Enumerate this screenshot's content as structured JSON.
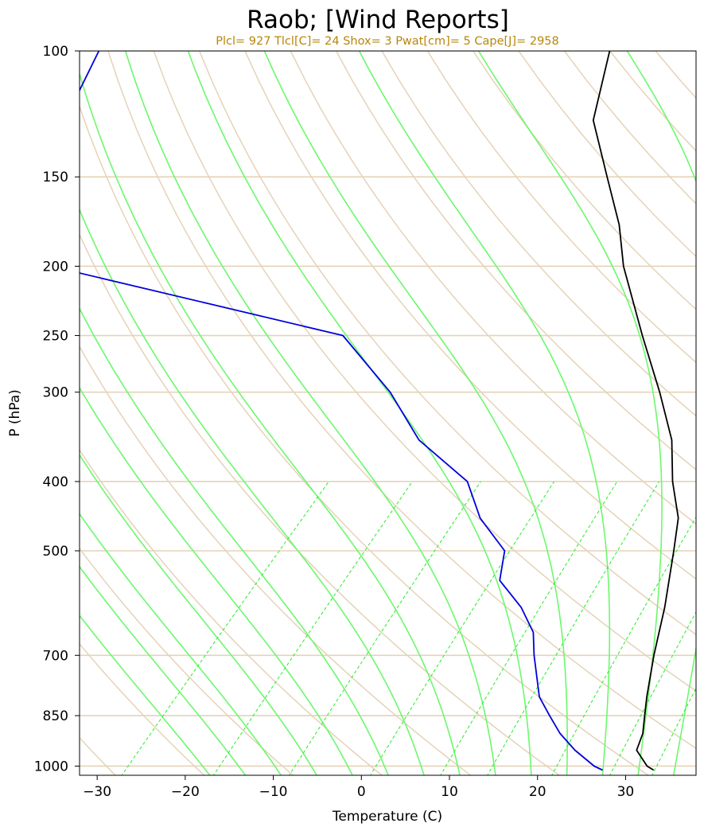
{
  "chart_data": {
    "type": "line",
    "title": "Raob; [Wind Reports]",
    "subtitle": "Plcl= 927 Tlcl[C]= 24 Shox= 3 Pwat[cm]= 5 Cape[J]= 2958",
    "xlabel": "Temperature (C)",
    "ylabel": "P (hPa)",
    "xlim": [
      -32,
      38
    ],
    "ylim": [
      1030,
      100
    ],
    "y_scale": "log",
    "x_ticks": [
      -30,
      -20,
      -10,
      0,
      10,
      20,
      30
    ],
    "x_tick_labels": [
      "−30",
      "−20",
      "−10",
      "0",
      "10",
      "20",
      "30"
    ],
    "y_ticks": [
      100,
      150,
      200,
      250,
      300,
      400,
      500,
      700,
      850,
      1000
    ],
    "y_tick_labels": [
      "100",
      "150",
      "200",
      "250",
      "300",
      "400",
      "500",
      "700",
      "850",
      "1000"
    ],
    "grid": true,
    "series": [
      {
        "color": "#000000",
        "points": [
          {
            "p": 1013,
            "t": 32.6
          },
          {
            "p": 1000,
            "t": 31.4
          },
          {
            "p": 950,
            "t": 28.4
          },
          {
            "p": 900,
            "t": 27.2
          },
          {
            "p": 850,
            "t": 25.4
          },
          {
            "p": 800,
            "t": 23.5
          },
          {
            "p": 700,
            "t": 19.6
          },
          {
            "p": 600,
            "t": 15.4
          },
          {
            "p": 500,
            "t": 10.0
          },
          {
            "p": 450,
            "t": 6.8
          },
          {
            "p": 400,
            "t": 2.0
          },
          {
            "p": 350,
            "t": -2.8
          },
          {
            "p": 300,
            "t": -9.6
          },
          {
            "p": 250,
            "t": -18.0
          },
          {
            "p": 200,
            "t": -28.0
          },
          {
            "p": 175,
            "t": -33.2
          },
          {
            "p": 150,
            "t": -40.0
          },
          {
            "p": 125,
            "t": -48.0
          },
          {
            "p": 100,
            "t": -54.0
          }
        ]
      },
      {
        "color": "#0000dd",
        "points": [
          {
            "p": 1013,
            "t": 26.8
          },
          {
            "p": 1000,
            "t": 25.4
          },
          {
            "p": 950,
            "t": 21.4
          },
          {
            "p": 900,
            "t": 17.8
          },
          {
            "p": 850,
            "t": 14.6
          },
          {
            "p": 800,
            "t": 11.3
          },
          {
            "p": 700,
            "t": 6.0
          },
          {
            "p": 650,
            "t": 3.3
          },
          {
            "p": 600,
            "t": -0.9
          },
          {
            "p": 550,
            "t": -6.4
          },
          {
            "p": 500,
            "t": -9.2
          },
          {
            "p": 450,
            "t": -15.7
          },
          {
            "p": 400,
            "t": -21.3
          },
          {
            "p": 350,
            "t": -31.5
          },
          {
            "p": 300,
            "t": -40.2
          },
          {
            "p": 250,
            "t": -52.0
          },
          {
            "p": 200,
            "t": -93.0
          },
          {
            "p": 175,
            "t": -98.0
          },
          {
            "p": 150,
            "t": -103.0
          },
          {
            "p": 125,
            "t": -108.0
          },
          {
            "p": 100,
            "t": -112.0
          }
        ]
      }
    ],
    "isobar_color": "#e5d3b8",
    "dry_adiabat_color": "#e5d3b8",
    "moist_adiabat_color": "#6cf86c",
    "mixing_ratio_color": "#22ee22"
  }
}
